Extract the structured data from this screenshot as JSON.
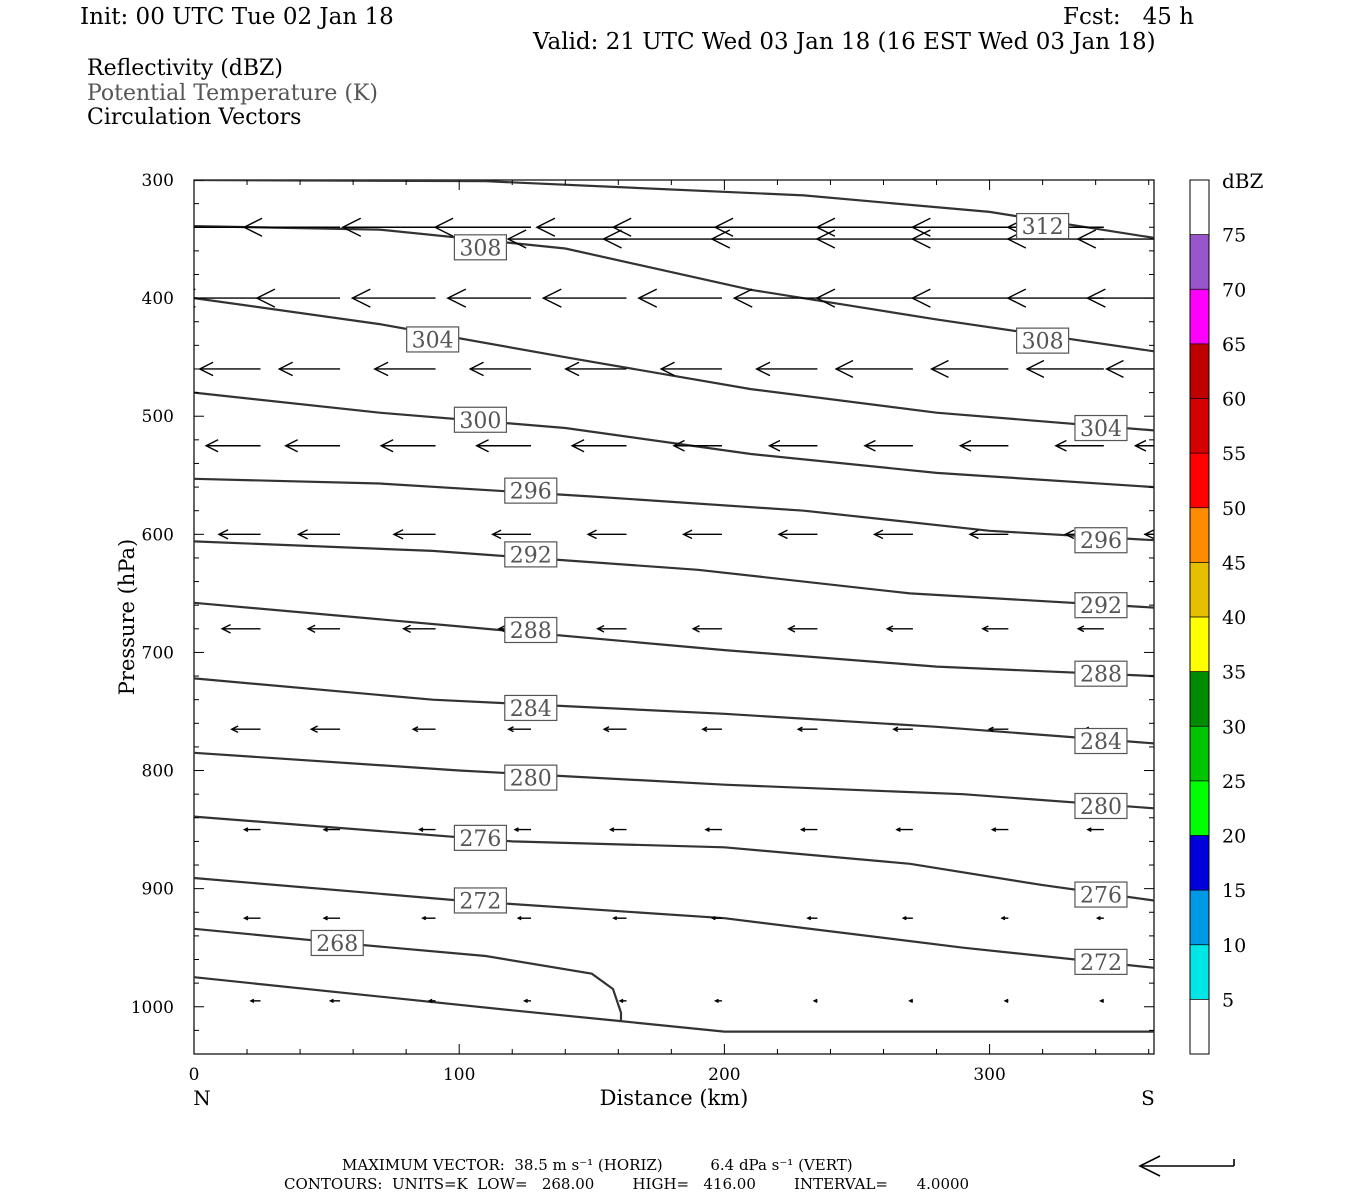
{
  "header": {
    "init": "Init: 00 UTC Tue 02 Jan 18",
    "fcst": "Fcst:   45 h",
    "valid": "Valid: 21 UTC Wed 03 Jan 18 (16 EST Wed 03 Jan 18)"
  },
  "legend": {
    "reflectivity": "Reflectivity (dBZ)",
    "theta": "Potential Temperature (K)",
    "vectors": "Circulation Vectors"
  },
  "colors": {
    "contour": "#333333",
    "theta_label": "#555555"
  },
  "chart_data": {
    "type": "cross-section",
    "xlabel": "Distance (km)",
    "ylabel": "Pressure (hPa)",
    "xlim": [
      0,
      362
    ],
    "ylim": [
      1040,
      300
    ],
    "x_ticks": [
      0,
      100,
      200,
      300
    ],
    "y_ticks": [
      300,
      400,
      500,
      600,
      700,
      800,
      900,
      1000
    ],
    "x_end_labels": {
      "left": "N",
      "right": "S"
    },
    "contours": [
      {
        "label": "312",
        "label_pos": [
          320,
          339
        ],
        "points": [
          [
            0,
            300
          ],
          [
            110,
            301
          ],
          [
            230,
            313
          ],
          [
            300,
            327
          ],
          [
            362,
            349
          ]
        ]
      },
      {
        "label": "308",
        "label_pos": [
          108,
          357
        ],
        "points": [
          [
            0,
            339
          ],
          [
            70,
            342
          ],
          [
            140,
            358
          ],
          [
            210,
            393
          ],
          [
            280,
            418
          ],
          [
            362,
            445
          ]
        ]
      },
      {
        "label": "308",
        "label_pos": [
          320,
          436
        ],
        "points": []
      },
      {
        "label": "304",
        "label_pos": [
          90,
          435
        ],
        "points": [
          [
            0,
            400
          ],
          [
            70,
            422
          ],
          [
            140,
            450
          ],
          [
            210,
            477
          ],
          [
            280,
            497
          ],
          [
            362,
            512
          ]
        ]
      },
      {
        "label": "304",
        "label_pos": [
          342,
          510
        ],
        "points": []
      },
      {
        "label": "300",
        "label_pos": [
          108,
          503
        ],
        "points": [
          [
            0,
            480
          ],
          [
            70,
            497
          ],
          [
            140,
            510
          ],
          [
            210,
            532
          ],
          [
            280,
            548
          ],
          [
            362,
            560
          ]
        ]
      },
      {
        "label": "296",
        "label_pos": [
          127,
          563
        ],
        "points": [
          [
            0,
            553
          ],
          [
            70,
            557
          ],
          [
            150,
            568
          ],
          [
            230,
            580
          ],
          [
            300,
            597
          ],
          [
            362,
            605
          ]
        ]
      },
      {
        "label": "296",
        "label_pos": [
          342,
          605
        ],
        "points": []
      },
      {
        "label": "292",
        "label_pos": [
          127,
          617
        ],
        "points": [
          [
            0,
            606
          ],
          [
            90,
            614
          ],
          [
            190,
            630
          ],
          [
            270,
            650
          ],
          [
            362,
            662
          ]
        ]
      },
      {
        "label": "292",
        "label_pos": [
          342,
          660
        ],
        "points": []
      },
      {
        "label": "288",
        "label_pos": [
          127,
          681
        ],
        "points": [
          [
            0,
            658
          ],
          [
            100,
            678
          ],
          [
            200,
            698
          ],
          [
            280,
            712
          ],
          [
            362,
            720
          ]
        ]
      },
      {
        "label": "288",
        "label_pos": [
          342,
          718
        ],
        "points": []
      },
      {
        "label": "284",
        "label_pos": [
          127,
          747
        ],
        "points": [
          [
            0,
            722
          ],
          [
            90,
            740
          ],
          [
            200,
            752
          ],
          [
            280,
            763
          ],
          [
            362,
            777
          ]
        ]
      },
      {
        "label": "284",
        "label_pos": [
          342,
          775
        ],
        "points": []
      },
      {
        "label": "280",
        "label_pos": [
          127,
          806
        ],
        "points": [
          [
            0,
            785
          ],
          [
            100,
            800
          ],
          [
            200,
            812
          ],
          [
            290,
            820
          ],
          [
            362,
            832
          ]
        ]
      },
      {
        "label": "280",
        "label_pos": [
          342,
          830
        ],
        "points": []
      },
      {
        "label": "276",
        "label_pos": [
          108,
          857
        ],
        "points": [
          [
            0,
            839
          ],
          [
            120,
            860
          ],
          [
            200,
            865
          ],
          [
            270,
            879
          ],
          [
            320,
            897
          ],
          [
            362,
            910
          ]
        ]
      },
      {
        "label": "276",
        "label_pos": [
          342,
          905
        ],
        "points": []
      },
      {
        "label": "272",
        "label_pos": [
          108,
          910
        ],
        "points": [
          [
            0,
            891
          ],
          [
            100,
            910
          ],
          [
            200,
            925
          ],
          [
            290,
            950
          ],
          [
            362,
            967
          ]
        ]
      },
      {
        "label": "272",
        "label_pos": [
          342,
          962
        ],
        "points": []
      },
      {
        "label": "268",
        "label_pos": [
          54,
          946
        ],
        "points": [
          [
            0,
            934
          ],
          [
            60,
            947
          ],
          [
            110,
            957
          ],
          [
            150,
            972
          ],
          [
            158,
            985
          ],
          [
            161,
            1005
          ],
          [
            161,
            1012
          ]
        ]
      },
      {
        "label": "",
        "label_pos": [
          0,
          0
        ],
        "points": [
          [
            0,
            975
          ],
          [
            60,
            989
          ],
          [
            120,
            1003
          ],
          [
            160,
            1012
          ],
          [
            200,
            1021
          ],
          [
            362,
            1021
          ]
        ]
      }
    ],
    "vector_field": {
      "x": [
        10,
        40,
        76,
        112,
        148,
        184,
        220,
        256,
        292,
        328,
        358
      ],
      "rows": [
        {
          "p": 340,
          "u": [
            -30,
            -30,
            -29,
            -30,
            -28,
            -34,
            -32,
            -30,
            -30,
            -30,
            0
          ]
        },
        {
          "p": 350,
          "u": [
            0,
            0,
            0,
            0,
            -37,
            -37,
            -33,
            -30,
            -30,
            -30,
            -33
          ]
        },
        {
          "p": 400,
          "u": [
            -26,
            -26,
            -26,
            -26,
            -26,
            -26,
            -26,
            -30,
            -30,
            -30,
            -30
          ]
        },
        {
          "p": 460,
          "u": [
            -19,
            -19,
            -19,
            -19,
            -19,
            -19,
            -19,
            -24,
            -24,
            -24,
            -24
          ]
        },
        {
          "p": 525,
          "u": [
            -17,
            -17,
            -17,
            -17,
            -17,
            -15,
            -15,
            -15,
            -15,
            -15,
            -15
          ]
        },
        {
          "p": 600,
          "u": [
            -13,
            -13,
            -13,
            -12,
            -12,
            -12,
            -12,
            -12,
            -12,
            -12,
            -12
          ]
        },
        {
          "p": 680,
          "u": [
            -12,
            -10,
            -10,
            -10,
            -9,
            -9,
            -9,
            -8,
            -8,
            -8,
            -8
          ]
        },
        {
          "p": 765,
          "u": [
            -9,
            -9,
            -7,
            -7,
            -7,
            -6,
            -6,
            -6,
            -6,
            -6,
            -6
          ]
        },
        {
          "p": 850,
          "u": [
            -5,
            -5,
            -5,
            -5,
            -5,
            -5,
            -5,
            -5,
            -5,
            -5,
            -5
          ]
        },
        {
          "p": 925,
          "u": [
            -5,
            -5,
            -4,
            -4,
            -4,
            -3,
            -3,
            -3,
            -2,
            -2,
            -2
          ]
        },
        {
          "p": 995,
          "u": [
            -3,
            -3,
            -2,
            -2,
            -2,
            -2,
            -1,
            -1,
            -1,
            -1,
            -1
          ]
        }
      ]
    },
    "colorbar": {
      "label": "dBZ",
      "ticks": [
        "5",
        "10",
        "15",
        "20",
        "25",
        "30",
        "35",
        "40",
        "45",
        "50",
        "55",
        "60",
        "65",
        "70",
        "75"
      ],
      "colors": [
        "#ffffff",
        "#00e6e6",
        "#0099e6",
        "#0000dd",
        "#00ff00",
        "#00c400",
        "#008c00",
        "#ffff00",
        "#e6bf00",
        "#ff8c00",
        "#ff0000",
        "#d60000",
        "#bf0000",
        "#ff00ff",
        "#9955cc",
        "#ffffff"
      ]
    }
  },
  "footer": {
    "max_vector": "MAXIMUM VECTOR:  38.5 m s⁻¹ (HORIZ)          6.4 dPa s⁻¹ (VERT)",
    "contours": "CONTOURS:  UNITS=K  LOW=   268.00        HIGH=   416.00        INTERVAL=      4.0000"
  }
}
